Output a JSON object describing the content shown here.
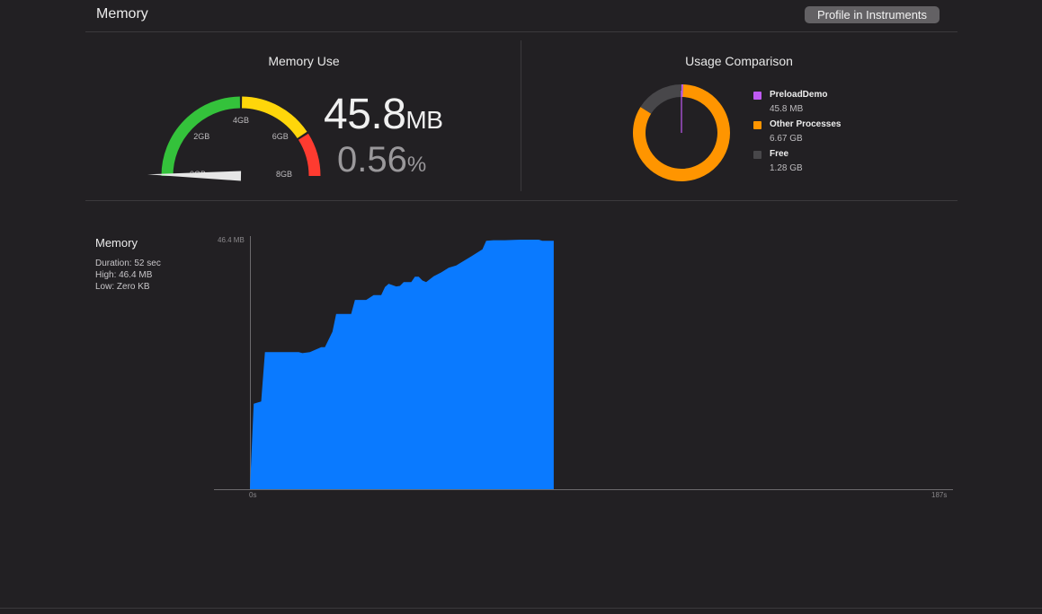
{
  "header": {
    "title": "Memory",
    "profile_button": "Profile in Instruments"
  },
  "memory_use": {
    "title": "Memory Use",
    "value": "45.8",
    "value_unit": "MB",
    "percent": "0.56",
    "percent_unit": "%",
    "gauge_labels": [
      "0GB",
      "2GB",
      "4GB",
      "6GB",
      "8GB"
    ],
    "gauge_fraction": 0.0056,
    "gauge_colors": [
      "#34c23b",
      "#ffd60a",
      "#ff3b30"
    ]
  },
  "usage_comparison": {
    "title": "Usage Comparison",
    "legend": [
      {
        "name": "PreloadDemo",
        "value": "45.8 MB",
        "color": "#bf5af2",
        "amount_gb": 0.0458
      },
      {
        "name": "Other Processes",
        "value": "6.67 GB",
        "color": "#ff9500",
        "amount_gb": 6.67
      },
      {
        "name": "Free",
        "value": "1.28 GB",
        "color": "#48474a",
        "amount_gb": 1.28
      }
    ]
  },
  "memory_graph": {
    "title": "Memory",
    "duration": "Duration: 52 sec",
    "high": "High: 46.4 MB",
    "low": "Low: Zero KB",
    "y_max_label": "46.4 MB",
    "x_start_label": "0s",
    "x_end_label": "187s",
    "fill_color": "#0a7aff"
  },
  "chart_data": {
    "type": "area",
    "title": "",
    "xlabel": "",
    "ylabel": "",
    "x_unit": "s",
    "y_unit": "MB",
    "xlim": [
      0,
      187
    ],
    "ylim": [
      0,
      46.4
    ],
    "x": [
      0,
      1,
      3,
      4,
      13,
      14,
      16,
      19,
      20,
      22,
      23,
      27,
      28,
      31,
      33,
      35,
      36,
      37,
      39,
      40,
      41,
      43,
      44,
      45,
      46,
      47,
      49,
      51,
      53,
      55,
      59,
      62,
      63,
      65,
      68,
      72,
      73,
      77,
      78,
      81
    ],
    "series": [
      {
        "values": [
          0,
          15.9,
          16.3,
          25.5,
          25.5,
          25.3,
          25.5,
          26.4,
          26.4,
          29.3,
          32.6,
          32.6,
          35.2,
          35.2,
          36.1,
          36.1,
          37.6,
          38.2,
          37.7,
          37.8,
          38.5,
          38.5,
          39.5,
          39.5,
          38.8,
          38.5,
          39.6,
          40.3,
          41.2,
          41.6,
          43.3,
          44.6,
          46.2,
          46.3,
          46.3,
          46.4,
          46.4,
          46.4,
          46.2,
          46.2
        ]
      }
    ]
  }
}
